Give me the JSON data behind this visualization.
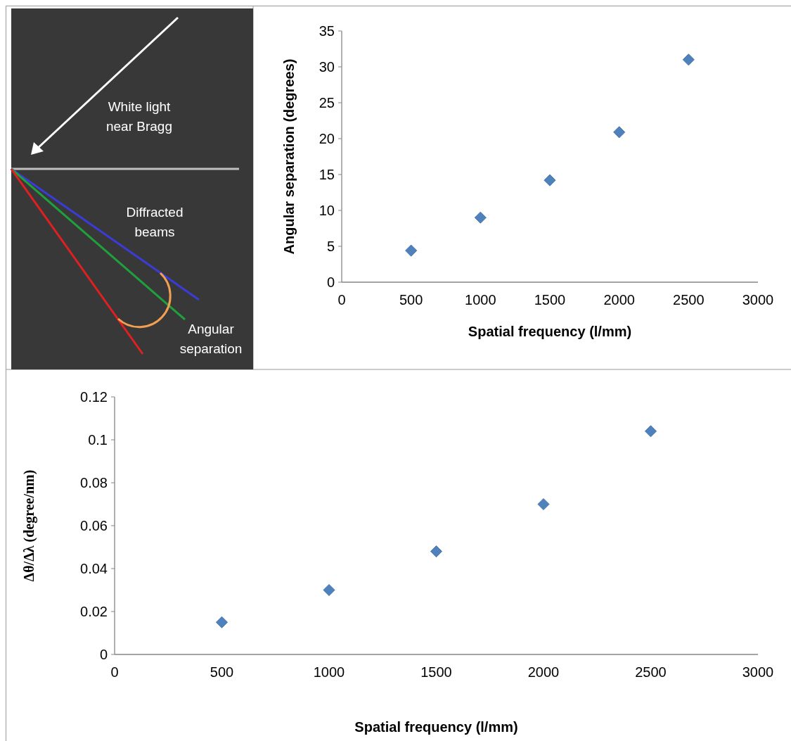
{
  "chart_data": [
    {
      "type": "other",
      "annotations": [
        "White light near Bragg",
        "Diffracted beams",
        "Angular separation"
      ]
    },
    {
      "type": "scatter",
      "xlabel": "Spatial frequency (l/mm)",
      "ylabel": "Angular separation (degrees)",
      "x": [
        500,
        1000,
        1500,
        2000,
        2500
      ],
      "values": [
        4.4,
        9.0,
        14.2,
        20.9,
        31.0
      ],
      "color": "#4f81bd",
      "marker": "diamond",
      "xlim": [
        0,
        3000
      ],
      "xticks": [
        0,
        500,
        1000,
        1500,
        2000,
        2500,
        3000
      ],
      "ylim": [
        0,
        35
      ],
      "yticks": [
        0,
        5,
        10,
        15,
        20,
        25,
        30,
        35
      ],
      "grid": false
    },
    {
      "type": "scatter",
      "xlabel": "Spatial frequency (l/mm)",
      "ylabel": "Δθ/Δλ (degree/nm)",
      "x": [
        500,
        1000,
        1500,
        2000,
        2500
      ],
      "values": [
        0.015,
        0.03,
        0.048,
        0.07,
        0.104
      ],
      "color": "#4f81bd",
      "marker": "diamond",
      "xlim": [
        0,
        3000
      ],
      "xticks": [
        0,
        500,
        1000,
        1500,
        2000,
        2500,
        3000
      ],
      "ylim": [
        0,
        0.12
      ],
      "yticks": [
        0,
        0.02,
        0.04,
        0.06,
        0.08,
        0.1,
        0.12
      ],
      "grid": false
    }
  ]
}
